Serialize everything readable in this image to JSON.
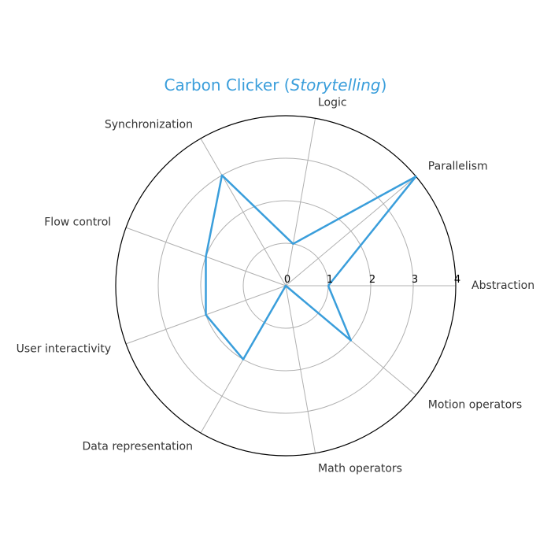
{
  "chart_data": {
    "type": "radar",
    "title_main": "Carbon Clicker (",
    "title_italic": "Storytelling",
    "title_end": ")",
    "categories": [
      "Abstraction",
      "Parallelism",
      "Logic",
      "Synchronization",
      "Flow control",
      "User interactivity",
      "Data representation",
      "Math operators",
      "Motion operators"
    ],
    "series": [
      {
        "values": [
          1,
          4,
          1,
          3,
          2,
          2,
          2,
          0,
          2
        ]
      }
    ],
    "rlim": [
      0,
      4
    ],
    "r_ticks": [
      "0",
      "1",
      "2",
      "3",
      "4"
    ],
    "grid": true,
    "colors": {
      "series": "#3a9edb",
      "title": "#3a9edb"
    }
  }
}
